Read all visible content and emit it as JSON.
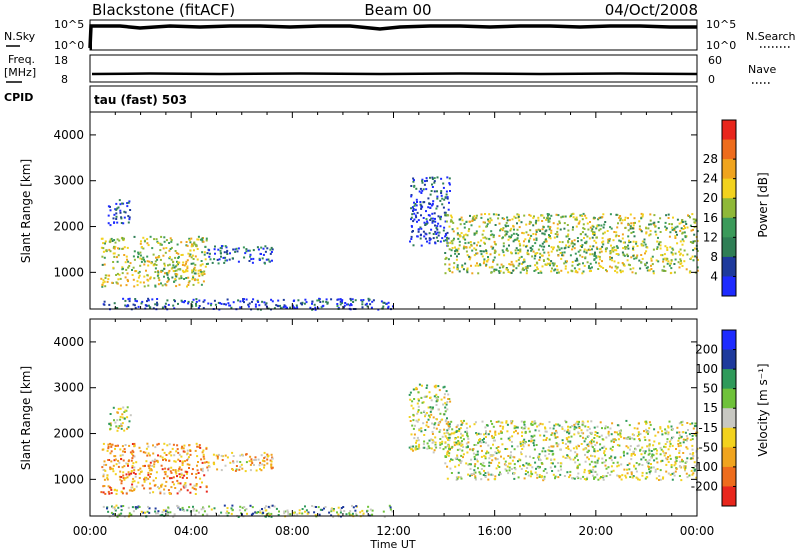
{
  "header": {
    "station": "Blackstone (fitACF)",
    "beam": "Beam 00",
    "date": "04/Oct/2008"
  },
  "nsky_panel": {
    "left_label": "N.Sky",
    "right_label": "N.Search",
    "tick_top": "10^5",
    "tick_bottom": "10^0",
    "tick_top_right": "10^5",
    "tick_bottom_right": "10^0"
  },
  "freq_panel": {
    "left_label_1": "Freq.",
    "left_label_2": "[MHz]",
    "right_label": "Nave",
    "left_ticks": [
      "18",
      "8"
    ],
    "right_ticks": [
      "60",
      "0"
    ]
  },
  "cpid": {
    "label": "CPID",
    "value": "tau (fast) 503"
  },
  "colors": {
    "power": [
      "#1e2bff",
      "#1e3a9c",
      "#2f7e55",
      "#3b9a5a",
      "#8fb838",
      "#f2d21e",
      "#f0a41e",
      "#ee6c1c",
      "#e8261c"
    ],
    "velocity": [
      "#e8261c",
      "#ee6c1c",
      "#f0a41e",
      "#f2d21e",
      "#c8c8c2",
      "#6fc23a",
      "#2f9a5a",
      "#1e3a9c",
      "#1e2bff"
    ]
  },
  "chart_data": [
    {
      "type": "heatmap",
      "name": "power",
      "ylabel": "Slant Range [km]",
      "ylim": [
        200,
        4500
      ],
      "yticks": [
        "1000",
        "2000",
        "3000",
        "4000"
      ],
      "xlim": [
        0,
        24
      ],
      "colorbar": {
        "label": "Power [dB]",
        "ticks": [
          "4",
          "8",
          "12",
          "16",
          "20",
          "24",
          "28"
        ]
      },
      "regions": [
        {
          "x0": 0.7,
          "x1": 1.6,
          "r0": 2050,
          "r1": 2600,
          "level": 0.1
        },
        {
          "x0": 0.4,
          "x1": 4.6,
          "r0": 700,
          "r1": 1800,
          "level": 0.55
        },
        {
          "x0": 4.6,
          "x1": 7.2,
          "r0": 1200,
          "r1": 1600,
          "level": 0.2
        },
        {
          "x0": 0.5,
          "x1": 12.0,
          "r0": 200,
          "r1": 450,
          "level": 0.12
        },
        {
          "x0": 12.6,
          "x1": 14.2,
          "r0": 1600,
          "r1": 3100,
          "level": 0.12
        },
        {
          "x0": 14.0,
          "x1": 24.0,
          "r0": 1000,
          "r1": 2300,
          "level": 0.5
        }
      ]
    },
    {
      "type": "heatmap",
      "name": "velocity",
      "ylabel": "Slant Range [km]",
      "xlabel": "Time UT",
      "ylim": [
        200,
        4500
      ],
      "yticks": [
        "1000",
        "2000",
        "3000",
        "4000"
      ],
      "xlim": [
        0,
        24
      ],
      "xticks": [
        "00:00",
        "04:00",
        "08:00",
        "12:00",
        "16:00",
        "20:00",
        "00:00"
      ],
      "colorbar": {
        "label": "Velocity [m s⁻¹]",
        "ticks": [
          "-200",
          "-100",
          "-50",
          "-15",
          "15",
          "50",
          "100",
          "200"
        ]
      },
      "regions": [
        {
          "x0": 0.7,
          "x1": 1.6,
          "r0": 2050,
          "r1": 2600,
          "level": 0.5
        },
        {
          "x0": 0.4,
          "x1": 4.6,
          "r0": 700,
          "r1": 1800,
          "level": 0.28
        },
        {
          "x0": 4.6,
          "x1": 7.2,
          "r0": 1200,
          "r1": 1600,
          "level": 0.35
        },
        {
          "x0": 0.5,
          "x1": 12.0,
          "r0": 200,
          "r1": 450,
          "level": 0.62
        },
        {
          "x0": 12.6,
          "x1": 14.2,
          "r0": 1600,
          "r1": 3100,
          "level": 0.5
        },
        {
          "x0": 14.0,
          "x1": 24.0,
          "r0": 1000,
          "r1": 2300,
          "level": 0.5
        }
      ]
    }
  ]
}
